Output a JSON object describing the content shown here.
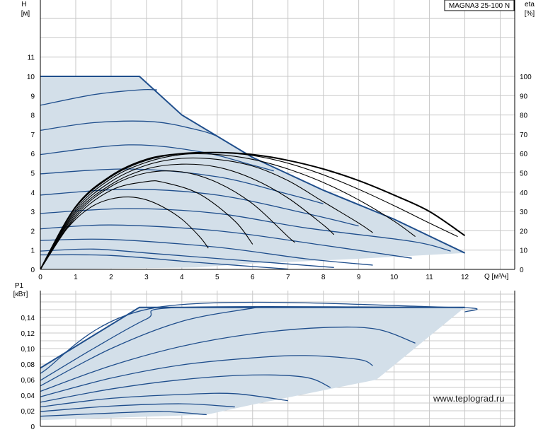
{
  "chart_data": [
    {
      "type": "line",
      "model_label": "MAGNA3 25-100 N",
      "xlabel": "Q [м³/ч]",
      "ylabel_left": "H",
      "ylabel_left_unit": "[м]",
      "ylabel_right": "eta",
      "ylabel_right_unit": "[%]",
      "xlim": [
        0,
        13.5
      ],
      "ylim_left": [
        0,
        14
      ],
      "ylim_right": [
        0,
        100
      ],
      "x_ticks": [
        0,
        1,
        2,
        3,
        4,
        5,
        6,
        7,
        8,
        9,
        10,
        11,
        12
      ],
      "y_ticks_left": [
        0,
        1,
        2,
        3,
        4,
        5,
        6,
        7,
        8,
        9,
        10,
        11
      ],
      "y_ticks_right": [
        0,
        10,
        20,
        30,
        40,
        50,
        60,
        70,
        80,
        90,
        100
      ],
      "grid": true,
      "operating_area": [
        [
          0,
          10
        ],
        [
          2.8,
          10
        ],
        [
          4,
          8
        ],
        [
          6,
          5.8
        ],
        [
          8,
          4.1
        ],
        [
          10,
          2.6
        ],
        [
          12,
          0.85
        ],
        [
          9,
          0.55
        ],
        [
          6,
          0.3
        ],
        [
          4.4,
          0.1
        ],
        [
          0,
          0
        ]
      ],
      "head_curves": [
        {
          "points": [
            [
              0,
              10
            ],
            [
              2.8,
              10
            ],
            [
              4,
              8
            ],
            [
              6,
              5.8
            ],
            [
              8,
              4.1
            ],
            [
              10,
              2.6
            ],
            [
              12,
              0.85
            ]
          ]
        },
        {
          "points": [
            [
              0,
              8.5
            ],
            [
              1.5,
              9.05
            ],
            [
              2.8,
              9.3
            ],
            [
              3.3,
              9.3
            ]
          ]
        },
        {
          "points": [
            [
              0,
              7.2
            ],
            [
              1.5,
              7.6
            ],
            [
              3.2,
              7.65
            ],
            [
              4.5,
              7.2
            ],
            [
              5.0,
              6.9
            ]
          ]
        },
        {
          "points": [
            [
              0,
              5.95
            ],
            [
              2.5,
              6.45
            ],
            [
              4.5,
              6.1
            ],
            [
              6.0,
              5.4
            ],
            [
              6.6,
              5.1
            ]
          ]
        },
        {
          "points": [
            [
              0,
              4.95
            ],
            [
              2.5,
              5.2
            ],
            [
              5.0,
              4.8
            ],
            [
              7.0,
              3.9
            ],
            [
              8.0,
              3.4
            ]
          ]
        },
        {
          "points": [
            [
              0,
              3.85
            ],
            [
              2.5,
              4.15
            ],
            [
              5.0,
              3.85
            ],
            [
              7.5,
              2.9
            ],
            [
              9.0,
              2.25
            ]
          ]
        },
        {
          "points": [
            [
              0,
              2.9
            ],
            [
              2.5,
              3.15
            ],
            [
              5.0,
              2.9
            ],
            [
              7.5,
              2.15
            ],
            [
              10.5,
              1.45
            ],
            [
              11.6,
              0.95
            ]
          ]
        },
        {
          "points": [
            [
              0,
              2.1
            ],
            [
              2.0,
              2.3
            ],
            [
              5.0,
              2.0
            ],
            [
              8.0,
              1.25
            ],
            [
              10.5,
              0.58
            ]
          ]
        },
        {
          "points": [
            [
              0,
              1.5
            ],
            [
              2.0,
              1.55
            ],
            [
              5.0,
              1.15
            ],
            [
              7.5,
              0.55
            ],
            [
              9.4,
              0.22
            ]
          ]
        },
        {
          "points": [
            [
              0,
              0.95
            ],
            [
              1.5,
              1.05
            ],
            [
              3.0,
              0.85
            ],
            [
              6.0,
              0.42
            ],
            [
              8.3,
              0.1
            ]
          ]
        },
        {
          "points": [
            [
              0,
              0.75
            ],
            [
              2.0,
              0.72
            ],
            [
              4.5,
              0.35
            ],
            [
              7.0,
              0.02
            ]
          ]
        }
      ],
      "efficiency_curves": [
        {
          "points": [
            [
              0,
              0
            ],
            [
              0.5,
              15
            ],
            [
              1,
              26
            ],
            [
              1.5,
              33
            ],
            [
              2,
              36.5
            ],
            [
              2.5,
              37.5
            ],
            [
              3,
              36
            ],
            [
              3.5,
              32
            ],
            [
              4,
              26
            ],
            [
              4.5,
              17
            ],
            [
              4.75,
              11
            ]
          ]
        },
        {
          "points": [
            [
              0,
              0
            ],
            [
              1,
              27
            ],
            [
              2,
              41
            ],
            [
              3,
              45.5
            ],
            [
              3.5,
              45
            ],
            [
              4.5,
              39
            ],
            [
              5.5,
              25
            ],
            [
              6,
              13
            ]
          ]
        },
        {
          "points": [
            [
              0,
              0
            ],
            [
              1,
              28
            ],
            [
              2,
              43
            ],
            [
              3,
              50
            ],
            [
              4,
              50.5
            ],
            [
              5,
              45
            ],
            [
              6,
              34
            ],
            [
              7,
              17
            ],
            [
              7.2,
              14
            ]
          ]
        },
        {
          "points": [
            [
              0,
              0
            ],
            [
              1,
              29
            ],
            [
              2,
              44
            ],
            [
              3,
              52
            ],
            [
              4,
              54.5
            ],
            [
              5,
              53
            ],
            [
              6,
              47
            ],
            [
              7,
              37
            ],
            [
              8,
              23
            ],
            [
              8.3,
              18
            ]
          ]
        },
        {
          "points": [
            [
              0,
              0
            ],
            [
              1,
              30
            ],
            [
              2,
              45.5
            ],
            [
              3,
              54
            ],
            [
              4,
              57.5
            ],
            [
              5,
              57
            ],
            [
              6,
              53.5
            ],
            [
              7,
              46
            ],
            [
              8,
              35
            ],
            [
              9,
              24
            ],
            [
              9.4,
              19
            ]
          ]
        },
        {
          "points": [
            [
              0,
              0
            ],
            [
              1,
              31
            ],
            [
              2,
              47
            ],
            [
              3,
              55.5
            ],
            [
              4,
              59.5
            ],
            [
              5,
              59.5
            ],
            [
              6,
              57
            ],
            [
              7,
              52
            ],
            [
              8,
              45
            ],
            [
              9,
              36
            ],
            [
              10,
              25
            ],
            [
              10.6,
              17
            ]
          ]
        },
        {
          "points": [
            [
              0,
              0
            ],
            [
              1,
              32
            ],
            [
              2,
              48
            ],
            [
              3,
              56.5
            ],
            [
              4,
              60
            ],
            [
              5,
              60.5
            ],
            [
              6,
              59
            ],
            [
              7,
              55
            ],
            [
              8,
              49
            ],
            [
              9,
              41.5
            ],
            [
              10,
              33
            ],
            [
              11,
              24
            ],
            [
              11.8,
              17
            ]
          ]
        },
        {
          "points": [
            [
              0,
              0
            ],
            [
              1,
              32.5
            ],
            [
              2,
              48.5
            ],
            [
              3,
              57
            ],
            [
              4,
              60
            ],
            [
              5,
              60.5
            ],
            [
              6,
              59.5
            ],
            [
              7,
              56.5
            ],
            [
              8,
              52
            ],
            [
              9,
              46
            ],
            [
              10,
              38.5
            ],
            [
              11,
              30
            ],
            [
              12,
              17.5
            ]
          ],
          "emphasis": true
        }
      ]
    },
    {
      "type": "line",
      "ylabel": "P1",
      "ylabel_unit": "[кВт]",
      "xlim": [
        0,
        13.5
      ],
      "ylim": [
        0,
        0.17
      ],
      "y_ticks": [
        0,
        0.02,
        0.04,
        0.06,
        0.08,
        0.1,
        0.12,
        0.14
      ],
      "y_tick_labels": [
        "0",
        "0,02",
        "0,04",
        "0,06",
        "0,08",
        "0,10",
        "0,12",
        "0,14"
      ],
      "grid": true,
      "operating_area": [
        [
          0,
          0.075
        ],
        [
          2.8,
          0.153
        ],
        [
          12,
          0.153
        ],
        [
          9.5,
          0.06
        ],
        [
          6,
          0.028
        ],
        [
          4.7,
          0.015
        ],
        [
          0,
          0.008
        ]
      ],
      "power_curves": [
        {
          "points": [
            [
              0,
              0.075
            ],
            [
              2.8,
              0.153
            ],
            [
              12,
              0.153
            ]
          ]
        },
        {
          "points": [
            [
              0,
              0.068
            ],
            [
              3.3,
              0.153
            ],
            [
              11.6,
              0.153
            ],
            [
              12,
              0.147
            ]
          ]
        },
        {
          "points": [
            [
              0,
              0.059
            ],
            [
              1.5,
              0.1
            ],
            [
              3,
              0.138
            ],
            [
              4,
              0.153
            ],
            [
              11.5,
              0.153
            ]
          ]
        },
        {
          "points": [
            [
              0,
              0.052
            ],
            [
              2,
              0.1
            ],
            [
              4,
              0.135
            ],
            [
              6,
              0.152
            ],
            [
              6.3,
              0.153
            ]
          ]
        },
        {
          "points": [
            [
              0,
              0.045
            ],
            [
              2,
              0.078
            ],
            [
              4,
              0.103
            ],
            [
              6,
              0.119
            ],
            [
              8,
              0.127
            ],
            [
              9.5,
              0.125
            ],
            [
              10.6,
              0.107
            ]
          ]
        },
        {
          "points": [
            [
              0,
              0.038
            ],
            [
              2,
              0.062
            ],
            [
              4,
              0.079
            ],
            [
              6,
              0.088
            ],
            [
              7.5,
              0.091
            ],
            [
              9,
              0.086
            ],
            [
              9.4,
              0.078
            ]
          ]
        },
        {
          "points": [
            [
              0,
              0.031
            ],
            [
              2,
              0.048
            ],
            [
              4,
              0.06
            ],
            [
              6,
              0.066
            ],
            [
              7.5,
              0.063
            ],
            [
              8.2,
              0.05
            ]
          ]
        },
        {
          "points": [
            [
              0,
              0.025
            ],
            [
              2,
              0.036
            ],
            [
              4,
              0.041
            ],
            [
              5.5,
              0.042
            ],
            [
              7,
              0.033
            ]
          ]
        },
        {
          "points": [
            [
              0,
              0.019
            ],
            [
              2,
              0.026
            ],
            [
              4,
              0.029
            ],
            [
              5.5,
              0.025
            ]
          ]
        },
        {
          "points": [
            [
              0,
              0.013
            ],
            [
              2,
              0.017
            ],
            [
              3.5,
              0.019
            ],
            [
              4.7,
              0.015
            ]
          ]
        }
      ]
    }
  ],
  "watermark": "www.teplograd.ru"
}
